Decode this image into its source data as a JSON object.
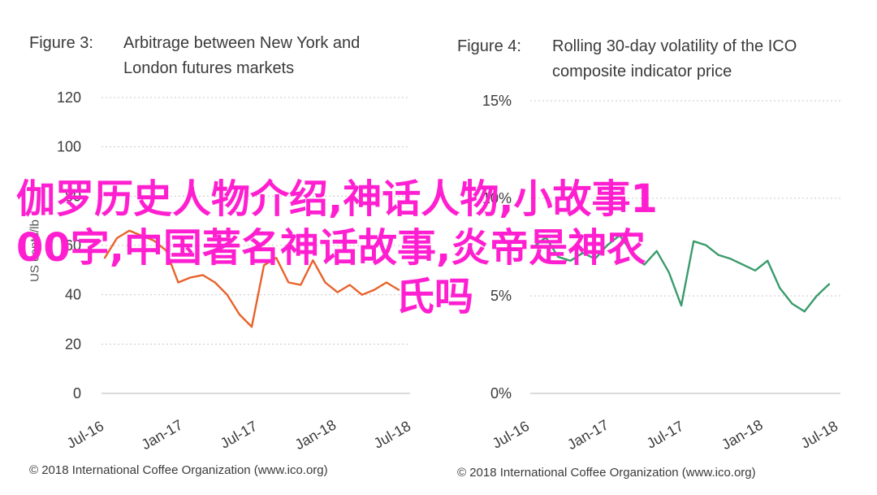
{
  "charts": [
    {
      "figure_label": "Figure 3:",
      "title_lines": [
        "Arbitrage between New York and",
        "London futures markets"
      ],
      "ylabel": "US cents/lb",
      "footer": "© 2018 International Coffee Organization (www.ico.org)"
    },
    {
      "figure_label": "Figure 4:",
      "title_lines": [
        "Rolling 30-day volatility of the ICO",
        "composite indicator price"
      ],
      "ylabel": "",
      "footer": "© 2018 International Coffee Organization (www.ico.org)"
    }
  ],
  "overlay": {
    "line1": "伽罗历史人物介绍,神话人物,小故事1",
    "line2": "00字,中国著名神话故事,炎帝是神农",
    "line3": "氏吗",
    "color": "#ff1fd0"
  },
  "chart_data": [
    {
      "type": "line",
      "title": "Arbitrage between New York and London futures markets",
      "ylabel": "US cents/lb",
      "ylim": [
        0,
        120
      ],
      "yticks": [
        "0",
        "20",
        "40",
        "60",
        "80",
        "100",
        "120"
      ],
      "xticks": [
        "Jul-16",
        "Jan-17",
        "Jul-17",
        "Jan-18",
        "Jul-18"
      ],
      "grid": true,
      "color": "#e8622b",
      "x": [
        "2016-07",
        "2016-08",
        "2016-09",
        "2016-10",
        "2016-11",
        "2016-12",
        "2017-01",
        "2017-02",
        "2017-03",
        "2017-04",
        "2017-05",
        "2017-06",
        "2017-07",
        "2017-08",
        "2017-09",
        "2017-10",
        "2017-11",
        "2017-12",
        "2018-01",
        "2018-02",
        "2018-03",
        "2018-04",
        "2018-05",
        "2018-06",
        "2018-07"
      ],
      "y": [
        55,
        63,
        66,
        64,
        62,
        58,
        45,
        47,
        48,
        45,
        40,
        32,
        27,
        52,
        55,
        45,
        44,
        54,
        45,
        41,
        44,
        40,
        42,
        45,
        42
      ]
    },
    {
      "type": "line",
      "title": "Rolling 30-day volatility of the ICO composite indicator price",
      "ylim": [
        0,
        15
      ],
      "yticks": [
        "0%",
        "5%",
        "10%",
        "15%"
      ],
      "xticks": [
        "Jul-16",
        "Jan-17",
        "Jul-17",
        "Jan-18",
        "Jul-18"
      ],
      "grid": true,
      "color": "#3a9b6b",
      "x": [
        "2016-07",
        "2016-08",
        "2016-09",
        "2016-10",
        "2016-11",
        "2016-12",
        "2017-01",
        "2017-02",
        "2017-03",
        "2017-04",
        "2017-05",
        "2017-06",
        "2017-07",
        "2017-08",
        "2017-09",
        "2017-10",
        "2017-11",
        "2017-12",
        "2018-01",
        "2018-02",
        "2018-03",
        "2018-04",
        "2018-05",
        "2018-06",
        "2018-07"
      ],
      "y": [
        7.5,
        8.0,
        7.0,
        6.8,
        7.2,
        6.9,
        7.6,
        8.1,
        7.2,
        6.6,
        7.3,
        6.2,
        4.5,
        7.8,
        7.6,
        7.1,
        6.9,
        6.6,
        6.3,
        6.8,
        5.4,
        4.6,
        4.2,
        5.0,
        5.6
      ]
    }
  ]
}
